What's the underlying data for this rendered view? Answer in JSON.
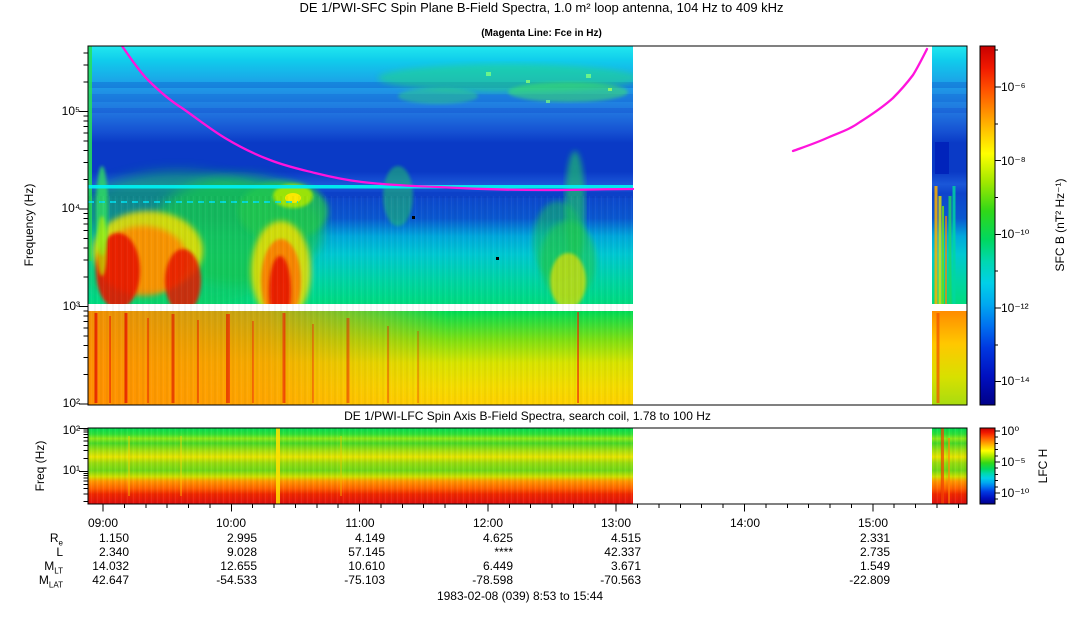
{
  "colors": {
    "background": "#FFFFFF",
    "fce_line": "#FF14DC",
    "axis": "#000000",
    "colorbar_palette": "rainbow: red=high, dark blue=low"
  },
  "header": {
    "title": "DE 1/PWI-SFC  Spin Plane B-Field Spectra, 1.0 m² loop antenna, 104 Hz to 409 kHz",
    "subtitle": "(Magenta Line: Fce in Hz)"
  },
  "sfc": {
    "ylabel": "Frequency (Hz)",
    "yticks": [
      "10⁵",
      "10⁴",
      "10³",
      "10²"
    ],
    "colorbar_label": "SFC B (nT² Hz⁻¹)",
    "colorbar_ticks": [
      "10⁻⁶",
      "10⁻⁸",
      "10⁻¹⁰",
      "10⁻¹²",
      "10⁻¹⁴"
    ]
  },
  "lfc": {
    "title": "DE 1/PWI-LFC  Spin Axis B-Field Spectra, search coil, 1.78 to 100 Hz",
    "ylabel": "Freq (Hz)",
    "yticks": [
      "10²",
      "10¹"
    ],
    "colorbar_label": "LFC H",
    "colorbar_ticks": [
      "10⁰",
      "10⁻⁵",
      "10⁻¹⁰"
    ]
  },
  "time_axis": {
    "labels": [
      "09:00",
      "10:00",
      "11:00",
      "12:00",
      "13:00",
      "14:00",
      "15:00"
    ]
  },
  "ephemeris": {
    "rows": [
      {
        "label": "R",
        "sub": "e",
        "values": [
          "1.150",
          "2.995",
          "4.149",
          "4.625",
          "4.515",
          "",
          "2.331"
        ]
      },
      {
        "label": "L",
        "sub": "",
        "values": [
          "2.340",
          "9.028",
          "57.145",
          "****",
          "42.337",
          "",
          "2.735"
        ]
      },
      {
        "label": "M",
        "sub": "LT",
        "values": [
          "14.032",
          "12.655",
          "10.610",
          "6.449",
          "3.671",
          "",
          "1.549"
        ]
      },
      {
        "label": "M",
        "sub": "LAT",
        "values": [
          "42.647",
          "-54.533",
          "-75.103",
          "-78.598",
          "-70.563",
          "",
          "-22.809"
        ]
      }
    ]
  },
  "footer": {
    "date_range": "1983-02-08 (039) 8:53 to 15:44"
  },
  "chart_data": [
    {
      "type": "heatmap",
      "name": "SFC spectrogram",
      "title": "DE 1/PWI-SFC  Spin Plane B-Field Spectra, 1.0 m² loop antenna, 104 Hz to 409 kHz",
      "subtitle": "(Magenta Line: Fce in Hz)",
      "x_axis": {
        "start": "08:53",
        "end": "15:44",
        "tick_labels": [
          "09:00",
          "10:00",
          "11:00",
          "12:00",
          "13:00",
          "14:00",
          "15:00"
        ],
        "minor_tick_minutes": 10
      },
      "y_axis": {
        "label": "Frequency (Hz)",
        "scale": "log",
        "min_hz": 104,
        "max_hz": 409000,
        "tick_labels": [
          "10²",
          "10³",
          "10⁴",
          "10⁵"
        ]
      },
      "colorbar": {
        "label": "SFC B (nT² Hz⁻¹)",
        "scale": "log",
        "tick_labels": [
          "10⁻⁶",
          "10⁻⁸",
          "10⁻¹⁰",
          "10⁻¹²",
          "10⁻¹⁴"
        ],
        "palette": "rainbow red(high) to dark blue(low)"
      },
      "data_gap": {
        "from": "~13:08",
        "to": "~15:28"
      },
      "overlays": [
        {
          "name": "Fce electron gyrofrequency line",
          "color": "#FF14DC",
          "segments": [
            {
              "from": "~09:09 entering top of panel (>400 kHz)",
              "to": "~13:08 at ~17 kHz, falling monotonically"
            },
            {
              "from": "~14:25 at ~40 kHz",
              "to": "~15:30 rising to ~400 kHz"
            }
          ]
        }
      ],
      "features": [
        "intense red/orange broadband emission below ~10 kHz from 08:53 to ~11:30",
        "narrow bright cyan line near 16 kHz from 08:53 to ~13:08",
        "dark blue quiet band ~25-60 kHz",
        "white horizontal instrument gap just below 1 kHz across entire plot",
        "patchy green emission 100-300 kHz from ~11:20 to 13:08",
        "colored columns resume ~15:28 to 15:44 after data gap"
      ]
    },
    {
      "type": "heatmap",
      "name": "LFC spectrogram",
      "title": "DE 1/PWI-LFC  Spin Axis B-Field Spectra, search coil, 1.78 to 100 Hz",
      "x_axis": {
        "start": "08:53",
        "end": "15:44",
        "shared_with": "SFC spectrogram"
      },
      "y_axis": {
        "label": "Freq (Hz)",
        "scale": "log",
        "min_hz": 1.78,
        "max_hz": 100,
        "tick_labels": [
          "10¹",
          "10²"
        ]
      },
      "colorbar": {
        "label": "LFC H",
        "scale": "log",
        "tick_labels": [
          "10⁰",
          "10⁻⁵",
          "10⁻¹⁰"
        ]
      },
      "data_gap": {
        "from": "~13:08",
        "to": "~15:28"
      },
      "features": [
        "red/orange intense band at lowest frequencies (< ~4 Hz)",
        "horizontally banded green/yellow structure from ~4 to 100 Hz",
        "bright vertical streak near 10:25"
      ]
    },
    {
      "type": "table",
      "name": "ephemeris",
      "columns": [
        "09:00",
        "10:00",
        "11:00",
        "12:00",
        "13:00",
        "14:00",
        "15:00"
      ],
      "rows": [
        {
          "name": "Re",
          "values": [
            "1.150",
            "2.995",
            "4.149",
            "4.625",
            "4.515",
            null,
            "2.331"
          ]
        },
        {
          "name": "L",
          "values": [
            "2.340",
            "9.028",
            "57.145",
            "****",
            "42.337",
            null,
            "2.735"
          ]
        },
        {
          "name": "MLT",
          "values": [
            "14.032",
            "12.655",
            "10.610",
            "6.449",
            "3.671",
            null,
            "1.549"
          ]
        },
        {
          "name": "MLAT",
          "values": [
            "42.647",
            "-54.533",
            "-75.103",
            "-78.598",
            "-70.563",
            null,
            "-22.809"
          ]
        }
      ],
      "caption": "1983-02-08 (039) 8:53 to 15:44"
    }
  ]
}
